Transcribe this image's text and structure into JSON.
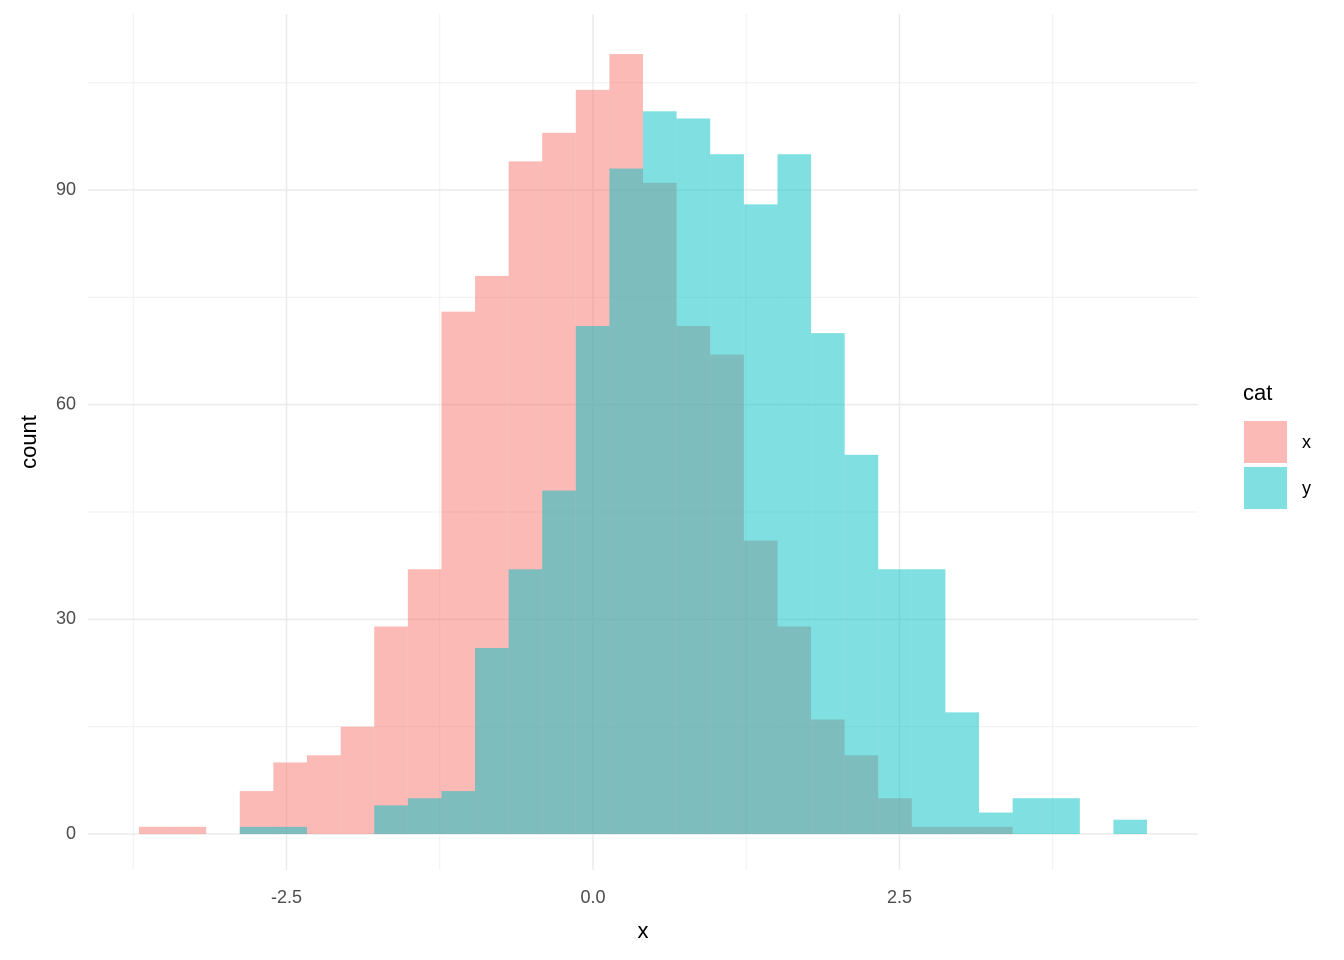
{
  "chart_data": {
    "type": "histogram",
    "x_label": "x",
    "y_label": "count",
    "bins": [
      -3.703,
      -3.429,
      -3.155,
      -2.881,
      -2.607,
      -2.333,
      -2.058,
      -1.784,
      -1.51,
      -1.236,
      -0.962,
      -0.688,
      -0.414,
      -0.14,
      0.134,
      0.408,
      0.682,
      0.956,
      1.231,
      1.505,
      1.779,
      2.053,
      2.327,
      2.601,
      2.875,
      3.149,
      3.423,
      3.697,
      3.971,
      4.245,
      4.519
    ],
    "series": [
      {
        "name": "x",
        "color": "#F8766D",
        "opacity": 0.5,
        "values": [
          1,
          1,
          0,
          6,
          10,
          11,
          15,
          29,
          37,
          73,
          78,
          94,
          98,
          104,
          109,
          91,
          71,
          67,
          41,
          29,
          16,
          11,
          5,
          1,
          1,
          1,
          0,
          0,
          0,
          0
        ]
      },
      {
        "name": "y",
        "color": "#00BFC4",
        "opacity": 0.5,
        "values": [
          0,
          0,
          0,
          1,
          1,
          0,
          0,
          4,
          5,
          6,
          26,
          37,
          48,
          71,
          93,
          101,
          100,
          95,
          88,
          95,
          70,
          53,
          37,
          37,
          17,
          3,
          5,
          5,
          0,
          2
        ]
      }
    ],
    "legend_title": "cat",
    "legend": "right",
    "xlim": [
      -4.119,
      4.935
    ],
    "ylim": [
      -5.03,
      114.6
    ],
    "xticks": [
      {
        "value": -2.5,
        "label": "-2.5"
      },
      {
        "value": 0,
        "label": "0.0"
      },
      {
        "value": 2.5,
        "label": "2.5"
      }
    ],
    "yticks": [
      0,
      30,
      60,
      90
    ],
    "xminor": [
      -3.75,
      -1.25,
      1.25,
      3.75
    ],
    "yminor": [
      15,
      45,
      75,
      105
    ],
    "grid": true
  }
}
